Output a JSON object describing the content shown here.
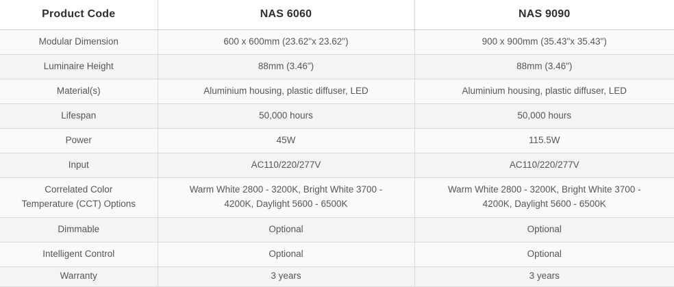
{
  "table": {
    "columns": [
      "Product Code",
      "NAS 6060",
      "NAS 9090"
    ],
    "rows": [
      {
        "label": "Modular Dimension",
        "values": [
          "600 x 600mm (23.62\"x 23.62\")",
          "900 x 900mm (35.43\"x 35.43\")"
        ]
      },
      {
        "label": "Luminaire Height",
        "values": [
          "88mm (3.46\")",
          "88mm (3.46\")"
        ]
      },
      {
        "label": "Material(s)",
        "values": [
          "Aluminium housing, plastic diffuser, LED",
          "Aluminium housing, plastic diffuser, LED"
        ]
      },
      {
        "label": "Lifespan",
        "values": [
          "50,000 hours",
          "50,000 hours"
        ]
      },
      {
        "label": "Power",
        "values": [
          "45W",
          "115.5W"
        ]
      },
      {
        "label": "Input",
        "values": [
          "AC110/220/277V",
          "AC110/220/277V"
        ]
      },
      {
        "label": "Correlated Color Temperature (CCT) Options",
        "values": [
          "Warm White 2800 - 3200K, Bright White 3700 - 4200K, Daylight 5600 - 6500K",
          "Warm White 2800 - 3200K, Bright White 3700 - 4200K, Daylight 5600 - 6500K"
        ]
      },
      {
        "label": "Dimmable",
        "values": [
          "Optional",
          "Optional"
        ]
      },
      {
        "label": "Intelligent Control",
        "values": [
          "Optional",
          "Optional"
        ]
      },
      {
        "label": "Warranty",
        "values": [
          "3 years",
          "3 years"
        ]
      }
    ]
  },
  "colors": {
    "header_background": "#ffffff",
    "header_text": "#2e2e2e",
    "body_text": "#565656",
    "row_background_odd": "#fafafa",
    "row_background_even": "#f4f4f5",
    "border": "#d9d9d9"
  }
}
